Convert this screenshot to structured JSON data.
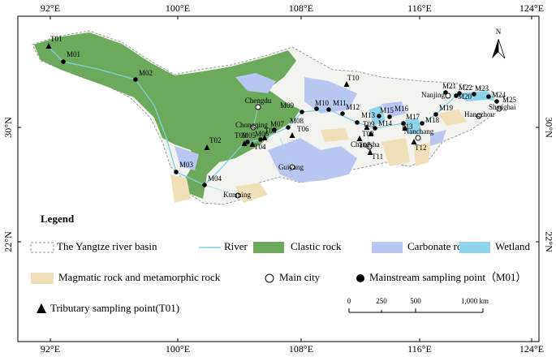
{
  "map": {
    "axes": {
      "top": [
        "92°E",
        "100°E",
        "108°E",
        "116°E",
        "124°E"
      ],
      "bottom": [
        "92°E",
        "100°E",
        "108°E",
        "116°E",
        "124°E"
      ],
      "left": [
        "30°N",
        "22°N"
      ],
      "right": [
        "30°N",
        "22°N"
      ]
    },
    "north": "N",
    "cities": [
      "Chengdu",
      "Chongqing",
      "Guiyang",
      "Kunming",
      "Changsha",
      "Nanchang",
      "Nanjing",
      "Hangzhou",
      "Shanghai"
    ],
    "mainstream": [
      "M01",
      "M02",
      "M03",
      "M04",
      "M05",
      "M06",
      "M07",
      "M08",
      "M09",
      "M10",
      "M11",
      "M12",
      "M13",
      "M14",
      "M15",
      "M16",
      "M17",
      "M18",
      "M19",
      "M20",
      "M21",
      "M22",
      "M23",
      "M24",
      "M25"
    ],
    "tributary": [
      "T01",
      "T02",
      "T03",
      "T04",
      "T05",
      "T06",
      "T07",
      "T08",
      "T09",
      "T10",
      "T11",
      "T12",
      "T13"
    ],
    "legend": {
      "title": "Legend",
      "basin": "The Yangtze river basin",
      "river": "River",
      "clastic": "Clastic rock",
      "carbonate": "Carbonate rock",
      "wetland": "Wetland",
      "magmatic": "Magmatic rock and metamorphic rock",
      "city": "Main city",
      "mainstream": "Mainstream sampling point（M01）",
      "tributary": "Tributary sampling point(T01)"
    },
    "scale": [
      "0",
      "250",
      "500",
      "1,000 km"
    ]
  }
}
